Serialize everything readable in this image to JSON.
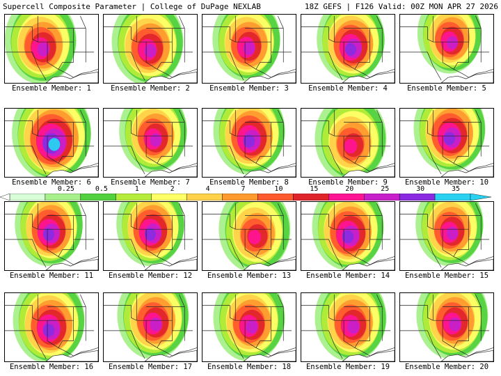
{
  "header": {
    "left": "Supercell Composite Parameter | College of DuPage NEXLAB",
    "right": "18Z GEFS | F126 Valid: 00Z MON APR 27 2026"
  },
  "members": [
    {
      "label": "Ensemble Member: 1",
      "peak": 0.78,
      "lon": 0.3,
      "lat": 0.32,
      "spread": 0.55
    },
    {
      "label": "Ensemble Member: 2",
      "peak": 0.72,
      "lon": 0.45,
      "lat": 0.35,
      "spread": 0.55
    },
    {
      "label": "Ensemble Member: 3",
      "peak": 0.8,
      "lon": 0.45,
      "lat": 0.3,
      "spread": 0.5
    },
    {
      "label": "Ensemble Member: 4",
      "peak": 0.9,
      "lon": 0.55,
      "lat": 0.3,
      "spread": 0.5
    },
    {
      "label": "Ensemble Member: 5",
      "peak": 0.78,
      "lon": 0.55,
      "lat": 0.18,
      "spread": 0.45
    },
    {
      "label": "Ensemble Member: 6",
      "peak": 0.95,
      "lon": 0.5,
      "lat": 0.3,
      "spread": 0.65
    },
    {
      "label": "Ensemble Member: 7",
      "peak": 0.75,
      "lon": 0.55,
      "lat": 0.25,
      "spread": 0.5
    },
    {
      "label": "Ensemble Member: 8",
      "peak": 0.88,
      "lon": 0.5,
      "lat": 0.25,
      "spread": 0.55
    },
    {
      "label": "Ensemble Member: 9",
      "peak": 0.6,
      "lon": 0.55,
      "lat": 0.4,
      "spread": 0.55
    },
    {
      "label": "Ensemble Member: 10",
      "peak": 0.82,
      "lon": 0.55,
      "lat": 0.2,
      "spread": 0.55
    },
    {
      "label": "Ensemble Member: 11",
      "peak": 0.85,
      "lon": 0.45,
      "lat": 0.25,
      "spread": 0.5
    },
    {
      "label": "Ensemble Member: 12",
      "peak": 0.88,
      "lon": 0.5,
      "lat": 0.25,
      "spread": 0.5
    },
    {
      "label": "Ensemble Member: 13",
      "peak": 0.68,
      "lon": 0.6,
      "lat": 0.35,
      "spread": 0.55
    },
    {
      "label": "Ensemble Member: 14",
      "peak": 0.9,
      "lon": 0.5,
      "lat": 0.3,
      "spread": 0.55
    },
    {
      "label": "Ensemble Member: 15",
      "peak": 0.74,
      "lon": 0.55,
      "lat": 0.25,
      "spread": 0.5
    },
    {
      "label": "Ensemble Member: 16",
      "peak": 0.86,
      "lon": 0.45,
      "lat": 0.35,
      "spread": 0.55
    },
    {
      "label": "Ensemble Member: 17",
      "peak": 0.74,
      "lon": 0.55,
      "lat": 0.25,
      "spread": 0.55
    },
    {
      "label": "Ensemble Member: 18",
      "peak": 0.76,
      "lon": 0.5,
      "lat": 0.3,
      "spread": 0.55
    },
    {
      "label": "Ensemble Member: 19",
      "peak": 0.75,
      "lon": 0.55,
      "lat": 0.3,
      "spread": 0.55
    },
    {
      "label": "Ensemble Member: 20",
      "peak": 0.72,
      "lon": 0.6,
      "lat": 0.25,
      "spread": 0.55
    }
  ],
  "colorbar": {
    "ticks": [
      "0.25",
      "0.5",
      "1",
      "2",
      "4",
      "7",
      "10",
      "15",
      "20",
      "25",
      "30",
      "35"
    ],
    "colors": [
      "#d8ffd8",
      "#a8f08a",
      "#52d13f",
      "#b6ec3a",
      "#ffff66",
      "#ffd24a",
      "#ff9a2e",
      "#ff5a2e",
      "#e0252a",
      "#ff1493",
      "#c71fc9",
      "#8a2be2",
      "#28d2f0"
    ]
  }
}
